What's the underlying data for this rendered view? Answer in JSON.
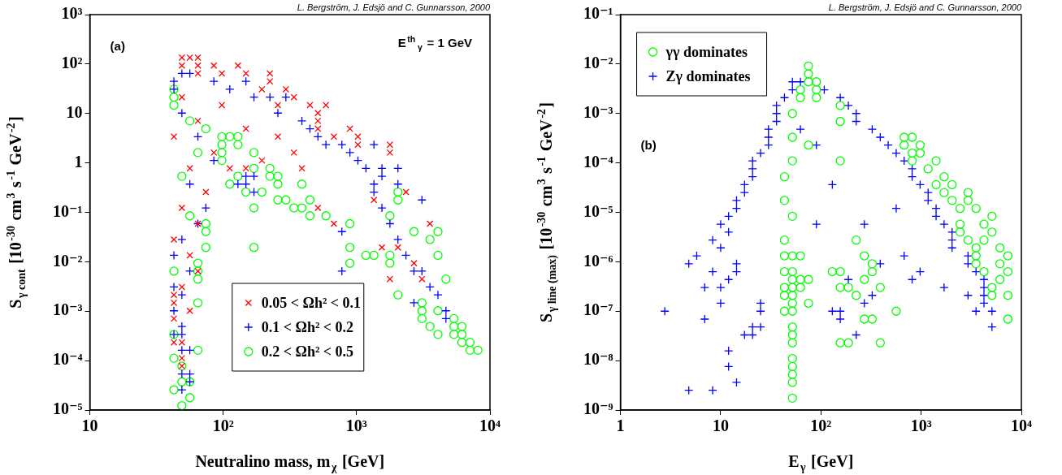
{
  "chart_data": [
    {
      "type": "scatter",
      "xlabel": "Neutralino mass, m$_{χ}$ [GeV]",
      "ylabel": "S$_{γ cont}$ [10$^{-30}$ cm$^{3}$ s$^{-1}$ GeV$^{-2}$]",
      "annotations": [
        "L. Bergström, J. Edsjö and C. Gunnarsson, 2000",
        "(a)",
        "E$^{th}$$_{γ}$ = 1 GeV"
      ],
      "log": "xy",
      "grid": false,
      "legend": "bottom",
      "xlim": [
        10,
        10000
      ],
      "xticks": [
        {
          "value": 10,
          "label": "10"
        },
        {
          "value": 100,
          "label": "10²"
        },
        {
          "value": 1000,
          "label": "10³"
        },
        {
          "value": 10000,
          "label": "10⁴"
        }
      ],
      "ylim": [
        1e-05,
        1000
      ],
      "yticks": [
        {
          "value": 1e-05,
          "label": "10⁻⁵"
        },
        {
          "value": 0.0001,
          "label": "10⁻⁴"
        },
        {
          "value": 0.001,
          "label": "10⁻³"
        },
        {
          "value": 0.01,
          "label": "10⁻²"
        },
        {
          "value": 0.1,
          "label": "10⁻¹"
        },
        {
          "value": 1,
          "label": "1"
        },
        {
          "value": 10,
          "label": "10"
        },
        {
          "value": 100,
          "label": "10²"
        },
        {
          "value": 1000,
          "label": "10³"
        }
      ],
      "series": [
        {
          "name": "0.05 < Ωh² < 0.1",
          "color": "#ff0000",
          "marker": "x",
          "x": [
            49.0,
            56.2,
            64.6,
            49.0,
            64.6,
            85.1,
            129,
            64.6,
            97.7,
            148,
            224,
            224,
            195,
            295,
            339,
            257,
            447,
            589,
            513,
            513,
            513,
            891,
            676,
            1023,
            1023,
            1778,
            1778,
            112,
            148,
            513,
            676,
            2344,
            3548,
            1549,
            1778,
            3090,
            2692,
            2042,
            1349,
            49.0,
            64.6,
            42.7,
            85.1,
            56.2,
            74.1,
            49.0,
            64.6,
            42.7,
            56.2,
            64.6,
            49.0,
            42.7,
            42.7,
            56.2,
            42.7,
            42.7,
            49.0,
            49.0,
            49.0,
            97.7,
            148,
            257,
            195,
            339,
            389
          ],
          "values": [
            135,
            135,
            135,
            93.3,
            93.3,
            93.3,
            93.3,
            64.6,
            64.6,
            64.6,
            64.6,
            44.7,
            30.9,
            30.9,
            21.4,
            14.8,
            14.8,
            14.8,
            10.2,
            7.08,
            4.9,
            4.9,
            3.39,
            3.39,
            2.34,
            2.34,
            1.62,
            0.776,
            0.776,
            0.123,
            0.0589,
            0.257,
            0.0589,
            0.0195,
            0.00447,
            0.00447,
            0.00933,
            0.0195,
            0.178,
            21.4,
            7.08,
            3.39,
            1.62,
            0.776,
            0.257,
            0.123,
            0.0589,
            0.0282,
            0.0135,
            0.00646,
            0.00309,
            0.00214,
            0.00148,
            0.00102,
            0.000708,
            0.000234,
            0.000234,
            0.000112,
            7.76e-05,
            14.8,
            4.9,
            3.39,
            1.12,
            1.62,
            0.776
          ]
        },
        {
          "name": "0.1 < Ωh² < 0.2",
          "color": "#0000ff",
          "marker": "cross",
          "x": [
            49.0,
            56.2,
            42.7,
            42.7,
            85.1,
            148,
            112,
            170,
            224,
            295,
            257,
            389,
            447,
            513,
            589,
            776,
            891,
            1023,
            1175,
            1349,
            1549,
            2042,
            1549,
            1349,
            2042,
            3090,
            1349,
            1549,
            1778,
            2042,
            2344,
            2692,
            3090,
            3548,
            4074,
            4677,
            4677,
            2692,
            148,
            170,
            129,
            148,
            170,
            776,
            776,
            42.7,
            42.7,
            42.7,
            49.0,
            42.7,
            49.0,
            49.0,
            56.2,
            49.0,
            56.2,
            56.2,
            49.0,
            49.0,
            64.6,
            85.1,
            56.2,
            74.1,
            49.0,
            56.2,
            49.0,
            64.6
          ],
          "values": [
            64.6,
            64.6,
            44.7,
            30.9,
            44.7,
            44.7,
            30.9,
            21.4,
            21.4,
            21.4,
            10.2,
            7.08,
            4.9,
            3.39,
            2.34,
            2.34,
            1.62,
            1.12,
            0.776,
            2.34,
            0.776,
            0.776,
            0.537,
            0.372,
            0.372,
            0.178,
            0.257,
            0.123,
            0.0589,
            0.0282,
            0.0135,
            0.00646,
            0.00646,
            0.00309,
            0.00214,
            0.00102,
            0.000708,
            0.00148,
            0.537,
            0.537,
            0.372,
            0.372,
            0.257,
            0.0407,
            0.00646,
            0.0135,
            0.00309,
            0.00102,
            0.00049,
            0.000339,
            0.000339,
            0.000162,
            0.000162,
            5.37e-05,
            5.37e-05,
            3.72e-05,
            2.57e-05,
            10.2,
            3.39,
            1.12,
            0.372,
            0.123,
            0.0282,
            0.00646,
            0.00214,
            0.0589
          ]
        },
        {
          "name": "0.2 < Ωh² < 0.5",
          "color": "#00ff00",
          "marker": "circle",
          "x": [
            42.7,
            42.7,
            42.7,
            56.2,
            74.1,
            97.7,
            112,
            129,
            97.7,
            129,
            97.7,
            170,
            97.7,
            170,
            224,
            129,
            224,
            257,
            112,
            257,
            389,
            148,
            195,
            257,
            295,
            447,
            170,
            339,
            389,
            447,
            589,
            74.1,
            891,
            74.1,
            74.1,
            170,
            891,
            1175,
            1778,
            64.6,
            891,
            42.7,
            64.6,
            64.6,
            64.6,
            42.7,
            64.6,
            42.7,
            49.0,
            49.0,
            56.2,
            42.7,
            56.2,
            49.0,
            4074,
            4074,
            4677,
            2042,
            3090,
            3090,
            4074,
            3090,
            3548,
            4074,
            5370,
            5370,
            5370,
            6166,
            6166,
            6166,
            7079,
            7079,
            8128,
            1778,
            1349,
            2692,
            2042,
            2042,
            1778,
            3548,
            56.2,
            49.0,
            64.6
          ],
          "values": [
            30.9,
            21.4,
            14.8,
            7.08,
            4.9,
            3.39,
            3.39,
            3.39,
            2.34,
            2.34,
            1.62,
            1.62,
            1.12,
            0.776,
            0.776,
            0.537,
            0.537,
            0.537,
            0.372,
            0.372,
            0.372,
            0.257,
            0.257,
            0.178,
            0.178,
            0.178,
            0.123,
            0.123,
            0.123,
            0.0851,
            0.0851,
            0.0589,
            0.0589,
            0.0407,
            0.0195,
            0.0195,
            0.0195,
            0.0135,
            0.0135,
            0.00933,
            0.00933,
            0.00646,
            0.00646,
            0.00447,
            0.00148,
            0.000339,
            0.000162,
            0.000112,
            7.76e-05,
            3.72e-05,
            3.72e-05,
            2.57e-05,
            1.78e-05,
            1.23e-05,
            0.0407,
            0.0135,
            0.00447,
            0.00214,
            0.00148,
            0.00102,
            0.00102,
            0.000708,
            0.00049,
            0.000339,
            0.000708,
            0.00049,
            0.000339,
            0.00049,
            0.000339,
            0.000234,
            0.000234,
            0.000162,
            0.000162,
            0.00933,
            0.0135,
            0.0407,
            0.257,
            0.178,
            0.0851,
            0.0282,
            0.0851,
            0.537,
            1.62
          ]
        }
      ]
    },
    {
      "type": "scatter",
      "xlabel": "E$_{γ}$ [GeV]",
      "ylabel": "S$_{γ line (max)}$ [10$^{-30}$ cm$^{3}$ s$^{-1}$ GeV$^{-2}$]",
      "annotations": [
        "L. Bergström, J. Edsjö and C. Gunnarsson, 2000",
        "(b)"
      ],
      "log": "xy",
      "grid": false,
      "legend": "top left",
      "xlim": [
        1,
        10000
      ],
      "xticks": [
        1,
        10,
        {
          "value": 100,
          "label": "10²"
        },
        {
          "value": 1000,
          "label": "10³"
        },
        {
          "value": 10000,
          "label": "10⁴"
        }
      ],
      "ylim": [
        1e-09,
        0.1
      ],
      "yticks": [
        {
          "value": 1e-09,
          "label": "10⁻⁹"
        },
        {
          "value": 1e-08,
          "label": "10⁻⁸"
        },
        {
          "value": 1e-07,
          "label": "10⁻⁷"
        },
        {
          "value": 1e-06,
          "label": "10⁻⁶"
        },
        {
          "value": 1e-05,
          "label": "10⁻⁵"
        },
        {
          "value": 0.0001,
          "label": "10⁻⁴"
        },
        {
          "value": 0.001,
          "label": "10⁻³"
        },
        {
          "value": 0.01,
          "label": "10⁻²"
        },
        {
          "value": 0.1,
          "label": "10⁻¹"
        }
      ],
      "series": [
        {
          "name": "γγ dominates",
          "color": "#00ff00",
          "marker": "circle",
          "x": [
            75.1,
            75.1,
            75.1,
            90.2,
            62.5,
            90.2,
            62.5,
            90.2,
            156,
            52.0,
            156,
            52.0,
            75.1,
            52.0,
            156,
            677,
            813,
            677,
            977,
            813,
            977,
            813,
            1410,
            1174,
            1694,
            1410,
            2035,
            1694,
            2937,
            2035,
            2937,
            2445,
            3528,
            5090,
            2445,
            4237,
            2445,
            5090,
            2937,
            4237,
            3528,
            6114,
            3528,
            7345,
            3528,
            6114,
            4237,
            7345,
            6114,
            5090,
            5090,
            7345,
            7345,
            43.3,
            43.3,
            52.0,
            43.3,
            43.3,
            52.0,
            62.5,
            43.3,
            52.0,
            130,
            156,
            325,
            52.0,
            62.5,
            75.1,
            43.3,
            52.0,
            62.5,
            156,
            43.3,
            52.0,
            52.0,
            75.1,
            43.3,
            52.0,
            564,
            271,
            325,
            52.0,
            52.0,
            52.0,
            156,
            188,
            391,
            52.0,
            52.0,
            52.0,
            52.0,
            52.0,
            225,
            271,
            325,
            271,
            391,
            188,
            225
          ],
          "values": [
            0.00912,
            0.00631,
            0.00437,
            0.00437,
            0.00302,
            0.00302,
            0.00209,
            0.00209,
            0.00145,
            0.001,
            0.000692,
            0.000331,
            0.000229,
            0.00011,
            0.00011,
            0.000331,
            0.000331,
            0.000229,
            0.000229,
            0.000158,
            0.000158,
            0.00011,
            0.00011,
            7.59e-05,
            5.25e-05,
            3.63e-05,
            3.63e-05,
            2.51e-05,
            2.51e-05,
            1.74e-05,
            1.74e-05,
            1.2e-05,
            1.2e-05,
            8.32e-06,
            5.75e-06,
            5.75e-06,
            3.98e-06,
            3.98e-06,
            2.75e-06,
            2.75e-06,
            1.91e-06,
            1.91e-06,
            1.32e-06,
            1.32e-06,
            9.12e-07,
            9.12e-07,
            6.31e-07,
            6.31e-07,
            4.37e-07,
            3.02e-07,
            2.09e-07,
            2.09e-07,
            6.92e-08,
            5.25e-05,
            1.74e-05,
            8.32e-06,
            2.75e-06,
            1.32e-06,
            1.32e-06,
            1.32e-06,
            6.31e-07,
            6.31e-07,
            6.31e-07,
            6.31e-07,
            6.31e-07,
            4.37e-07,
            4.37e-07,
            4.37e-07,
            3.02e-07,
            3.02e-07,
            3.02e-07,
            3.02e-07,
            2.09e-07,
            2.09e-07,
            1.45e-07,
            1.45e-07,
            1e-07,
            1e-07,
            1e-07,
            6.92e-08,
            6.92e-08,
            4.79e-08,
            3.31e-08,
            2.29e-08,
            2.29e-08,
            2.29e-08,
            2.29e-08,
            1.1e-08,
            7.59e-09,
            5.25e-09,
            3.63e-09,
            1.74e-09,
            2.75e-06,
            1.32e-06,
            9.12e-07,
            4.37e-07,
            3.02e-07,
            3.02e-07,
            2.09e-07
          ]
        },
        {
          "name": "Zγ dominates",
          "color": "#0000ff",
          "marker": "cross",
          "x": [
            52.0,
            62.5,
            52.0,
            108,
            43.3,
            156,
            36.1,
            188,
            36.1,
            225,
            36.1,
            225,
            30.0,
            325,
            30.0,
            391,
            30.0,
            469,
            25.0,
            564,
            20.8,
            677,
            20.8,
            813,
            20.8,
            813,
            17.3,
            977,
            17.3,
            1174,
            14.4,
            1174,
            14.4,
            1410,
            12.0,
            1410,
            10.0,
            1694,
            12.0,
            2035,
            8.32,
            2035,
            10.0,
            2035,
            5.77,
            2937,
            4.81,
            14.4,
            2937,
            8.32,
            14.4,
            977,
            3528,
            12.0,
            813,
            4237,
            6.93,
            10.0,
            1694,
            4237,
            2937,
            4237,
            10.0,
            25.0,
            4237,
            2.77,
            25.0,
            130,
            156,
            3528,
            5090,
            6.93,
            156,
            5090,
            20.8,
            25.0,
            17.3,
            20.8,
            12.0,
            12.0,
            14.4,
            4.81,
            8.32,
            90.2,
            130,
            271,
            391,
            188,
            325,
            90.2,
            564,
            62.5,
            225,
            271,
            677
          ],
          "values": [
            0.00437,
            0.00437,
            0.00302,
            0.00302,
            0.00209,
            0.00209,
            0.00145,
            0.00145,
            0.001,
            0.001,
            0.000692,
            0.000692,
            0.000479,
            0.000479,
            0.000331,
            0.000331,
            0.000229,
            0.000229,
            0.000158,
            0.000158,
            0.00011,
            0.00011,
            7.59e-05,
            7.59e-05,
            5.25e-05,
            5.25e-05,
            3.63e-05,
            3.63e-05,
            2.51e-05,
            2.51e-05,
            1.74e-05,
            1.74e-05,
            1.2e-05,
            1.2e-05,
            8.32e-06,
            8.32e-06,
            5.75e-06,
            5.75e-06,
            3.98e-06,
            3.98e-06,
            2.75e-06,
            2.75e-06,
            1.91e-06,
            1.91e-06,
            1.32e-06,
            1.32e-06,
            9.12e-07,
            9.12e-07,
            9.12e-07,
            6.31e-07,
            6.31e-07,
            6.31e-07,
            6.31e-07,
            4.37e-07,
            4.37e-07,
            4.37e-07,
            3.02e-07,
            3.02e-07,
            3.02e-07,
            3.02e-07,
            2.09e-07,
            2.09e-07,
            1.45e-07,
            1.45e-07,
            1.45e-07,
            1e-07,
            1e-07,
            1e-07,
            1e-07,
            1e-07,
            1e-07,
            6.92e-08,
            6.92e-08,
            4.79e-08,
            4.79e-08,
            4.79e-08,
            3.31e-08,
            3.31e-08,
            1.58e-08,
            7.59e-09,
            3.63e-09,
            2.51e-09,
            2.51e-09,
            0.000229,
            3.63e-05,
            5.75e-06,
            9.12e-07,
            4.37e-07,
            2.09e-07,
            5.75e-06,
            1.2e-05,
            0.000479,
            3.31e-08,
            1.45e-07,
            1.32e-06
          ]
        }
      ]
    }
  ]
}
